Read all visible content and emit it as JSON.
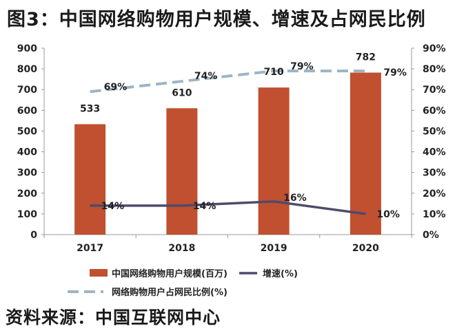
{
  "title": "图3：中国网络购物用户规模、增速及占网民比例",
  "source": "资料来源：中国互联网中心",
  "colors": {
    "bar": "#C0502F",
    "growth_line": "#4B4C6B",
    "ratio_line": "#9DB4C6",
    "axis": "#999999"
  },
  "chart_data": {
    "type": "bar",
    "categories": [
      "2017",
      "2018",
      "2019",
      "2020"
    ],
    "series": [
      {
        "name": "中国网络购物用户规模(百万)",
        "type": "bar",
        "axis": "left",
        "values": [
          533,
          610,
          710,
          782
        ],
        "labels": [
          "533",
          "610",
          "710",
          "782"
        ]
      },
      {
        "name": "增速(%)",
        "type": "line",
        "axis": "right",
        "style": "solid",
        "values": [
          14,
          14,
          16,
          10
        ],
        "labels": [
          "14%",
          "14%",
          "16%",
          "10%"
        ]
      },
      {
        "name": "网络购物用户占网民比例(%)",
        "type": "line",
        "axis": "right",
        "style": "dashed",
        "values": [
          69,
          74,
          79,
          79
        ],
        "labels": [
          "69%",
          "74%",
          "79%",
          "79%"
        ]
      }
    ],
    "ylim_left": [
      0,
      900
    ],
    "ylim_right": [
      0,
      90
    ],
    "yticks_left": [
      "0",
      "100",
      "200",
      "300",
      "400",
      "500",
      "600",
      "700",
      "800",
      "900"
    ],
    "yticks_right": [
      "0%",
      "10%",
      "20%",
      "30%",
      "40%",
      "50%",
      "60%",
      "70%",
      "80%",
      "90%"
    ],
    "grid": false,
    "legend_position": "bottom"
  }
}
